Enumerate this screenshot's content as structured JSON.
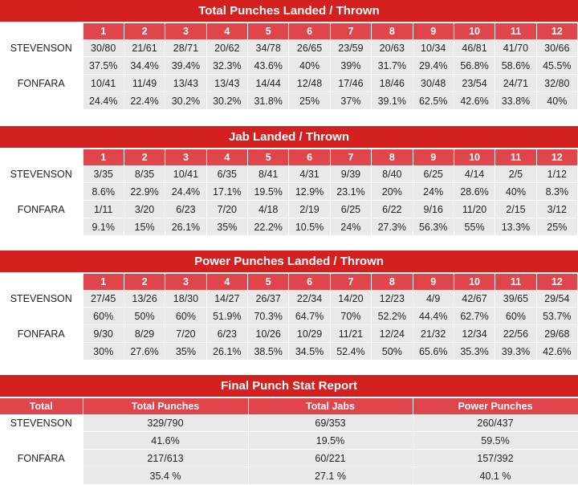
{
  "rounds": [
    "1",
    "2",
    "3",
    "4",
    "5",
    "6",
    "7",
    "8",
    "9",
    "10",
    "11",
    "12"
  ],
  "tables": [
    {
      "title": "Total Punches Landed / Thrown",
      "rows": [
        {
          "name": "STEVENSON",
          "counts": [
            "30/80",
            "21/61",
            "28/71",
            "20/62",
            "34/78",
            "26/65",
            "23/59",
            "20/63",
            "10/34",
            "46/81",
            "41/70",
            "30/66"
          ],
          "pcts": [
            "37.5%",
            "34.4%",
            "39.4%",
            "32.3%",
            "43.6%",
            "40%",
            "39%",
            "31.7%",
            "29.4%",
            "56.8%",
            "58.6%",
            "45.5%"
          ]
        },
        {
          "name": "FONFARA",
          "counts": [
            "10/41",
            "11/49",
            "13/43",
            "13/43",
            "14/44",
            "12/48",
            "17/46",
            "18/46",
            "30/48",
            "23/54",
            "24/71",
            "32/80"
          ],
          "pcts": [
            "24.4%",
            "22.4%",
            "30.2%",
            "30.2%",
            "31.8%",
            "25%",
            "37%",
            "39.1%",
            "62.5%",
            "42.6%",
            "33.8%",
            "40%"
          ]
        }
      ]
    },
    {
      "title": "Jab Landed / Thrown",
      "rows": [
        {
          "name": "STEVENSON",
          "counts": [
            "3/35",
            "8/35",
            "10/41",
            "6/35",
            "8/41",
            "4/31",
            "9/39",
            "8/40",
            "6/25",
            "4/14",
            "2/5",
            "1/12"
          ],
          "pcts": [
            "8.6%",
            "22.9%",
            "24.4%",
            "17.1%",
            "19.5%",
            "12.9%",
            "23.1%",
            "20%",
            "24%",
            "28.6%",
            "40%",
            "8.3%"
          ]
        },
        {
          "name": "FONFARA",
          "counts": [
            "1/11",
            "3/20",
            "6/23",
            "7/20",
            "4/18",
            "2/19",
            "6/25",
            "6/22",
            "9/16",
            "11/20",
            "2/15",
            "3/12"
          ],
          "pcts": [
            "9.1%",
            "15%",
            "26.1%",
            "35%",
            "22.2%",
            "10.5%",
            "24%",
            "27.3%",
            "56.3%",
            "55%",
            "13.3%",
            "25%"
          ]
        }
      ]
    },
    {
      "title": "Power Punches Landed / Thrown",
      "rows": [
        {
          "name": "STEVENSON",
          "counts": [
            "27/45",
            "13/26",
            "18/30",
            "14/27",
            "26/37",
            "22/34",
            "14/20",
            "12/23",
            "4/9",
            "42/67",
            "39/65",
            "29/54"
          ],
          "pcts": [
            "60%",
            "50%",
            "60%",
            "51.9%",
            "70.3%",
            "64.7%",
            "70%",
            "52.2%",
            "44.4%",
            "62.7%",
            "60%",
            "53.7%"
          ]
        },
        {
          "name": "FONFARA",
          "counts": [
            "9/30",
            "8/29",
            "7/20",
            "6/23",
            "10/26",
            "10/29",
            "11/21",
            "12/24",
            "21/32",
            "12/34",
            "22/56",
            "29/68"
          ],
          "pcts": [
            "30%",
            "27.6%",
            "35%",
            "26.1%",
            "38.5%",
            "34.5%",
            "52.4%",
            "50%",
            "65.6%",
            "35.3%",
            "39.3%",
            "42.6%"
          ]
        }
      ]
    }
  ],
  "final": {
    "title": "Final Punch Stat Report",
    "headers": [
      "Total",
      "Total Punches",
      "Total Jabs",
      "Power Punches"
    ],
    "rows": [
      {
        "name": "STEVENSON",
        "counts": [
          "329/790",
          "69/353",
          "260/437"
        ],
        "pcts": [
          "41.6%",
          "19.5%",
          "59.5%"
        ]
      },
      {
        "name": "FONFARA",
        "counts": [
          "217/613",
          "60/221",
          "157/392"
        ],
        "pcts": [
          "35.4 %",
          "27.1 %",
          "40.1 %"
        ]
      }
    ]
  },
  "colors": {
    "title_red": "#d4201f",
    "header_red": "#e0454b",
    "cell_gray": "#e9e9ea"
  }
}
